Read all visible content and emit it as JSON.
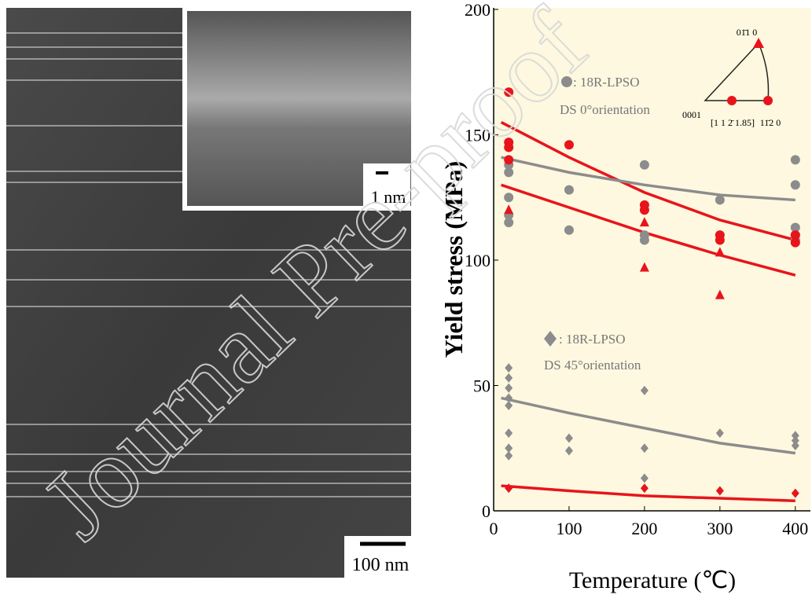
{
  "micrograph": {
    "inset_scale": "1 nm",
    "scale": "100 nm"
  },
  "watermark": "Journal Pre-proof",
  "chart_data": {
    "type": "scatter",
    "xlabel": "Temperature (℃)",
    "ylabel": "Yield stress (MPa)",
    "xlim": [
      0,
      420
    ],
    "ylim": [
      0,
      200
    ],
    "xticks": [
      0,
      100,
      200,
      300,
      400
    ],
    "yticks": [
      0,
      50,
      100,
      150,
      200
    ],
    "annotations": [
      ": 18R-LPSO",
      "DS 0°orientation",
      ": 18R-LPSO",
      "DS 45°orientation",
      "01̄1 0",
      "0001",
      "[1 1 2̄ 1.85]",
      "11̄2 0"
    ],
    "series": [
      {
        "style": "line",
        "color": "#e8141c",
        "x": [
          10,
          100,
          200,
          300,
          400
        ],
        "values": [
          155,
          141,
          127,
          116,
          108
        ]
      },
      {
        "style": "line",
        "color": "#e8141c",
        "x": [
          10,
          100,
          200,
          300,
          400
        ],
        "values": [
          130,
          121,
          111,
          102,
          94
        ]
      },
      {
        "style": "line",
        "color": "#8c8c8c",
        "x": [
          10,
          100,
          200,
          300,
          400
        ],
        "values": [
          141,
          135,
          130,
          126,
          124
        ]
      },
      {
        "style": "line",
        "color": "#8c8c8c",
        "x": [
          10,
          100,
          200,
          300,
          400
        ],
        "values": [
          45,
          39,
          33,
          27,
          23
        ]
      },
      {
        "style": "line",
        "color": "#e8141c",
        "x": [
          10,
          100,
          200,
          300,
          400
        ],
        "values": [
          10,
          8,
          6,
          5,
          4
        ]
      },
      {
        "style": "circle",
        "color": "#8c8c8c",
        "x": [
          20,
          20,
          20,
          20,
          20,
          100,
          100,
          200,
          200,
          200,
          300,
          400,
          400,
          400,
          400,
          400
        ],
        "values": [
          138,
          135,
          125,
          118,
          115,
          128,
          112,
          138,
          110,
          108,
          124,
          140,
          130,
          113,
          110,
          108
        ]
      },
      {
        "style": "circle",
        "color": "#e8141c",
        "x": [
          20,
          20,
          20,
          20,
          100,
          200,
          200,
          300,
          300,
          400,
          400
        ],
        "values": [
          167,
          147,
          145,
          140,
          146,
          122,
          120,
          110,
          108,
          110,
          107
        ]
      },
      {
        "style": "triangle",
        "color": "#e8141c",
        "x": [
          20,
          200,
          200,
          300,
          300
        ],
        "values": [
          120,
          115,
          97,
          103,
          86
        ]
      },
      {
        "style": "diamond",
        "color": "#8c8c8c",
        "x": [
          20,
          20,
          20,
          20,
          20,
          20,
          20,
          20,
          100,
          100,
          200,
          200,
          200,
          300,
          400,
          400,
          400
        ],
        "values": [
          57,
          53,
          49,
          45,
          42,
          31,
          25,
          22,
          29,
          24,
          48,
          25,
          13,
          31,
          30,
          28,
          26
        ]
      },
      {
        "style": "diamond",
        "color": "#e8141c",
        "x": [
          20,
          200,
          300,
          400
        ],
        "values": [
          9,
          9,
          8,
          7
        ]
      }
    ]
  }
}
